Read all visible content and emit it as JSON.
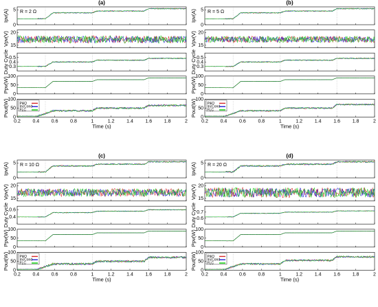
{
  "colors": {
    "po": "#d62728",
    "inc": "#1f1fd6",
    "flc": "#22cc22",
    "pv": "#2e7d2e",
    "vline": "#999999",
    "legend_swatch_green": "#00cc00"
  },
  "chart_data": [
    {
      "type": "line",
      "title": "(a)",
      "annotation": "R = 2 Ω",
      "xlabel": "Time (s)",
      "xlim": [
        0.2,
        2
      ],
      "xticks": [
        "0.2",
        "0.4",
        "0.6",
        "0.8",
        "1",
        "1.2",
        "1.4",
        "1.6",
        "1.8",
        "2"
      ],
      "legend": [
        "P&O",
        "IncCond",
        "FLC"
      ],
      "subplots": [
        {
          "ylabel": "Ipv(A)",
          "ylim": [
            0,
            6
          ],
          "yticks": [
            "0",
            "5"
          ],
          "steps": [
            [
              0.2,
              2
            ],
            [
              0.5,
              2
            ],
            [
              0.58,
              4
            ],
            [
              1.0,
              4
            ],
            [
              1.05,
              4.6
            ],
            [
              1.55,
              4.6
            ],
            [
              1.6,
              5.4
            ],
            [
              2,
              5.4
            ]
          ],
          "noise": 0.15
        },
        {
          "ylabel": "Vpv(V)",
          "ylim": [
            14,
            21
          ],
          "yticks": [
            "15",
            "20"
          ],
          "steps": [
            [
              0.2,
              17.3
            ],
            [
              2,
              17.3
            ]
          ],
          "noise": 1.5
        },
        {
          "ylabel": "Duty Cycle",
          "ylim": [
            0.2,
            0.6
          ],
          "yticks": [
            "0.3",
            "0.4",
            "0.5"
          ],
          "steps": [
            [
              0.2,
              0.3
            ],
            [
              0.5,
              0.3
            ],
            [
              0.58,
              0.4
            ],
            [
              1.0,
              0.4
            ],
            [
              1.05,
              0.44
            ],
            [
              1.55,
              0.44
            ],
            [
              1.6,
              0.48
            ],
            [
              2,
              0.48
            ]
          ],
          "noise": 0.01
        },
        {
          "ylabel": "Ppv(W)",
          "ylim": [
            0,
            100
          ],
          "yticks": [
            "0",
            "50",
            "100"
          ],
          "steps": [
            [
              0.2,
              35
            ],
            [
              0.5,
              35
            ],
            [
              0.58,
              70
            ],
            [
              1.0,
              70
            ],
            [
              1.05,
              80
            ],
            [
              1.55,
              80
            ],
            [
              1.6,
              90
            ],
            [
              2,
              90
            ]
          ],
          "noise": 0.5
        },
        {
          "ylabel": "Pout(W)",
          "ylim": [
            0,
            100
          ],
          "yticks": [
            "0",
            "50",
            "100"
          ],
          "steps": [
            [
              0.2,
              5
            ],
            [
              0.42,
              5
            ],
            [
              0.58,
              35
            ],
            [
              1.0,
              35
            ],
            [
              1.05,
              50
            ],
            [
              1.55,
              50
            ],
            [
              1.6,
              65
            ],
            [
              2,
              65
            ]
          ],
          "noise": 5
        }
      ]
    },
    {
      "type": "line",
      "title": "(b)",
      "annotation": "R = 5 Ω",
      "xlabel": "Time (s)",
      "xlim": [
        0.2,
        2
      ],
      "xticks": [
        "0.2",
        "0.4",
        "0.6",
        "0.8",
        "1",
        "1.2",
        "1.4",
        "1.6",
        "1.8",
        "2"
      ],
      "legend": [
        "P&O",
        "IncCond",
        "FLC"
      ],
      "subplots": [
        {
          "ylabel": "Ipv(A)",
          "ylim": [
            0,
            6
          ],
          "yticks": [
            "0",
            "5"
          ],
          "steps": [
            [
              0.2,
              2
            ],
            [
              0.5,
              2
            ],
            [
              0.58,
              4
            ],
            [
              1.0,
              4
            ],
            [
              1.05,
              4.6
            ],
            [
              1.55,
              4.6
            ],
            [
              1.6,
              5.4
            ],
            [
              2,
              5.4
            ]
          ],
          "noise": 0.15
        },
        {
          "ylabel": "Vpv(V)",
          "ylim": [
            14,
            21
          ],
          "yticks": [
            "15",
            "20"
          ],
          "steps": [
            [
              0.2,
              17.3
            ],
            [
              2,
              17.3
            ]
          ],
          "noise": 1.3
        },
        {
          "ylabel": "Duty Cycle",
          "ylim": [
            0.2,
            0.6
          ],
          "yticks": [
            "0.3",
            "0.4",
            "0.5"
          ],
          "steps": [
            [
              0.2,
              0.3
            ],
            [
              0.5,
              0.3
            ],
            [
              0.58,
              0.4
            ],
            [
              1.0,
              0.4
            ],
            [
              1.05,
              0.44
            ],
            [
              1.55,
              0.44
            ],
            [
              1.6,
              0.48
            ],
            [
              2,
              0.48
            ]
          ],
          "noise": 0.01
        },
        {
          "ylabel": "Ppv(W)",
          "ylim": [
            0,
            100
          ],
          "yticks": [
            "0",
            "50",
            "100"
          ],
          "steps": [
            [
              0.2,
              35
            ],
            [
              0.5,
              35
            ],
            [
              0.58,
              70
            ],
            [
              1.0,
              70
            ],
            [
              1.05,
              80
            ],
            [
              1.55,
              80
            ],
            [
              1.6,
              90
            ],
            [
              2,
              90
            ]
          ],
          "noise": 0.5
        },
        {
          "ylabel": "Pout(W)",
          "ylim": [
            0,
            100
          ],
          "yticks": [
            "0",
            "50",
            "100"
          ],
          "steps": [
            [
              0.2,
              5
            ],
            [
              0.42,
              5
            ],
            [
              0.58,
              35
            ],
            [
              1.0,
              35
            ],
            [
              1.05,
              50
            ],
            [
              1.55,
              50
            ],
            [
              1.6,
              70
            ],
            [
              2,
              70
            ]
          ],
          "noise": 4
        }
      ]
    },
    {
      "type": "line",
      "title": "(c)",
      "annotation": "R = 10 Ω",
      "xlabel": "Time (s)",
      "xlim": [
        0.2,
        2
      ],
      "xticks": [
        "0.2",
        "0.4",
        "0.6",
        "0.8",
        "1",
        "1.2",
        "1.4",
        "1.6",
        "1.8",
        "2"
      ],
      "legend": [
        "P&O",
        "IncCond",
        "FLC"
      ],
      "subplots": [
        {
          "ylabel": "Ipv(A)",
          "ylim": [
            0,
            6
          ],
          "yticks": [
            "0",
            "5"
          ],
          "steps": [
            [
              0.2,
              2
            ],
            [
              0.5,
              2
            ],
            [
              0.58,
              4
            ],
            [
              1.0,
              4
            ],
            [
              1.05,
              4.6
            ],
            [
              1.55,
              4.6
            ],
            [
              1.6,
              5.4
            ],
            [
              2,
              5.4
            ]
          ],
          "noise": 0.2
        },
        {
          "ylabel": "Vpv(V)",
          "ylim": [
            14,
            21
          ],
          "yticks": [
            "15",
            "20"
          ],
          "steps": [
            [
              0.2,
              17.3
            ],
            [
              2,
              17.3
            ]
          ],
          "noise": 1.6
        },
        {
          "ylabel": "Duty Cycle",
          "ylim": [
            0.2,
            0.7
          ],
          "yticks": [
            "0.4",
            "0.6"
          ],
          "steps": [
            [
              0.2,
              0.4
            ],
            [
              0.5,
              0.4
            ],
            [
              0.58,
              0.52
            ],
            [
              1.0,
              0.52
            ],
            [
              1.05,
              0.56
            ],
            [
              1.55,
              0.56
            ],
            [
              1.6,
              0.6
            ],
            [
              2,
              0.6
            ]
          ],
          "noise": 0.01
        },
        {
          "ylabel": "Ppv(W)",
          "ylim": [
            0,
            100
          ],
          "yticks": [
            "0",
            "50",
            "100"
          ],
          "steps": [
            [
              0.2,
              35
            ],
            [
              0.5,
              35
            ],
            [
              0.58,
              70
            ],
            [
              1.0,
              70
            ],
            [
              1.05,
              80
            ],
            [
              1.55,
              80
            ],
            [
              1.6,
              90
            ],
            [
              2,
              90
            ]
          ],
          "noise": 0.5
        },
        {
          "ylabel": "Pout(W)",
          "ylim": [
            0,
            100
          ],
          "yticks": [
            "0",
            "50",
            "100"
          ],
          "steps": [
            [
              0.2,
              5
            ],
            [
              0.42,
              5
            ],
            [
              0.58,
              35
            ],
            [
              1.0,
              35
            ],
            [
              1.05,
              50
            ],
            [
              1.55,
              50
            ],
            [
              1.6,
              72
            ],
            [
              2,
              72
            ]
          ],
          "noise": 6
        }
      ]
    },
    {
      "type": "line",
      "title": "(d)",
      "annotation": "R = 20 Ω",
      "xlabel": "Time (s)",
      "xlim": [
        0.2,
        2
      ],
      "xticks": [
        "0.2",
        "0.4",
        "0.6",
        "0.8",
        "1",
        "1.2",
        "1.4",
        "1.6",
        "1.8",
        "2"
      ],
      "legend": [
        "P&O",
        "IncCond",
        "FLC"
      ],
      "subplots": [
        {
          "ylabel": "Ipv(A)",
          "ylim": [
            0,
            6
          ],
          "yticks": [
            "0",
            "5"
          ],
          "steps": [
            [
              0.2,
              2
            ],
            [
              0.5,
              2
            ],
            [
              0.58,
              4
            ],
            [
              1.0,
              4
            ],
            [
              1.05,
              4.6
            ],
            [
              1.55,
              4.6
            ],
            [
              1.6,
              5.4
            ],
            [
              2,
              5.4
            ]
          ],
          "noise": 0.25
        },
        {
          "ylabel": "Vpv(V)",
          "ylim": [
            14,
            21
          ],
          "yticks": [
            "15",
            "20"
          ],
          "steps": [
            [
              0.2,
              17.3
            ],
            [
              2,
              17.3
            ]
          ],
          "noise": 2.0
        },
        {
          "ylabel": "Duty Cycle",
          "ylim": [
            0.5,
            0.8
          ],
          "yticks": [
            "0.6",
            "0.7"
          ],
          "steps": [
            [
              0.2,
              0.62
            ],
            [
              0.5,
              0.62
            ],
            [
              0.58,
              0.68
            ],
            [
              1.0,
              0.68
            ],
            [
              1.05,
              0.7
            ],
            [
              1.55,
              0.7
            ],
            [
              1.6,
              0.72
            ],
            [
              2,
              0.72
            ]
          ],
          "noise": 0.005
        },
        {
          "ylabel": "Ppv(W)",
          "ylim": [
            0,
            100
          ],
          "yticks": [
            "0",
            "50",
            "100"
          ],
          "steps": [
            [
              0.2,
              35
            ],
            [
              0.5,
              35
            ],
            [
              0.58,
              70
            ],
            [
              1.0,
              70
            ],
            [
              1.05,
              80
            ],
            [
              1.55,
              80
            ],
            [
              1.6,
              90
            ],
            [
              2,
              90
            ]
          ],
          "noise": 0.5
        },
        {
          "ylabel": "Pout(W)",
          "ylim": [
            0,
            100
          ],
          "yticks": [
            "0",
            "50",
            "100"
          ],
          "steps": [
            [
              0.2,
              5
            ],
            [
              0.42,
              5
            ],
            [
              0.58,
              35
            ],
            [
              1.0,
              35
            ],
            [
              1.05,
              55
            ],
            [
              1.55,
              55
            ],
            [
              1.6,
              75
            ],
            [
              2,
              75
            ]
          ],
          "noise": 5
        }
      ]
    }
  ]
}
